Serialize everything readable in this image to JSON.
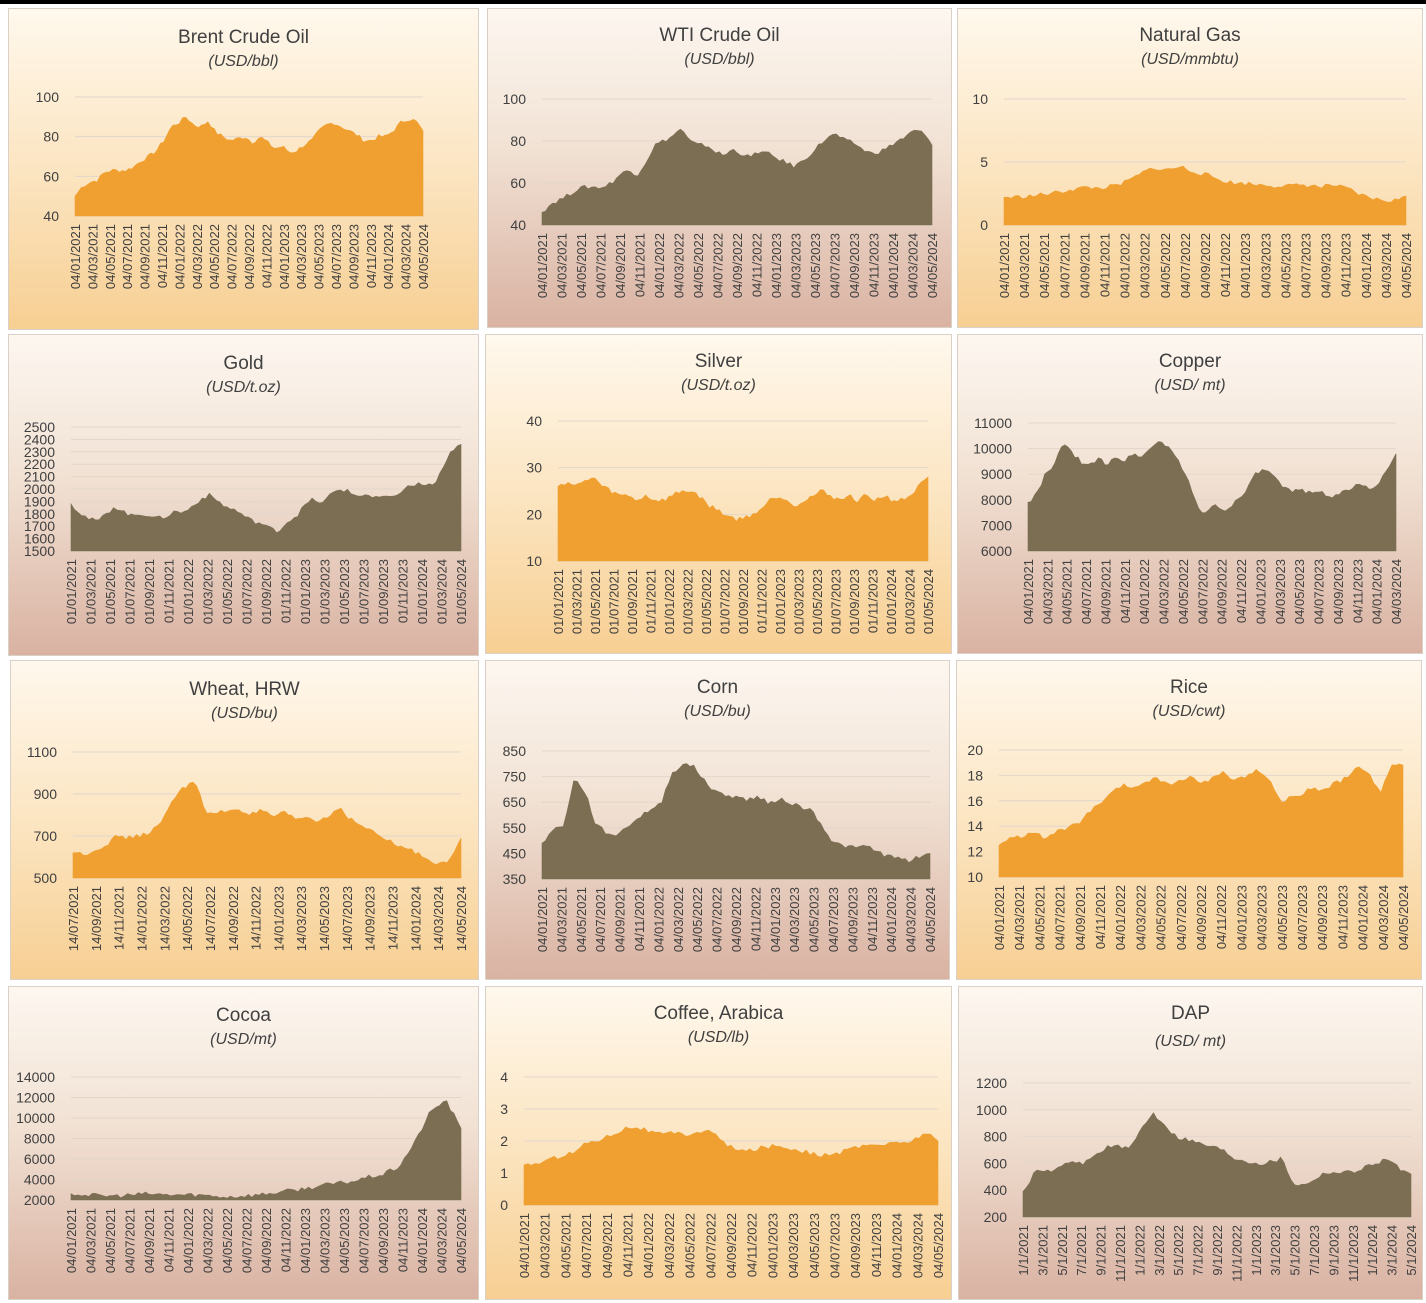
{
  "chart_data": [
    {
      "type": "area",
      "title": "Brent Crude Oil",
      "subtitle": "(USD/bbl)",
      "color": "#f0a030",
      "theme": "orange",
      "yticks": [
        40,
        60,
        80,
        100
      ],
      "ylim": [
        40,
        100
      ],
      "xticks": [
        "04/01/2021",
        "04/03/2021",
        "04/05/2021",
        "04/07/2021",
        "04/09/2021",
        "04/11/2021",
        "04/01/2022",
        "04/03/2022",
        "04/05/2022",
        "04/07/2022",
        "04/09/2022",
        "04/11/2022",
        "04/01/2023",
        "04/03/2023",
        "04/05/2023",
        "04/07/2023",
        "04/09/2023",
        "04/11/2023",
        "04/01/2024",
        "04/03/2024",
        "04/05/2024"
      ],
      "values": [
        50,
        55,
        57,
        58,
        62,
        63,
        63,
        63,
        65,
        68,
        70,
        73,
        78,
        85,
        87,
        90,
        86,
        85,
        88,
        82,
        80,
        78,
        79,
        80,
        77,
        80,
        77,
        74,
        75,
        72,
        73,
        76,
        78,
        83,
        86,
        87,
        85,
        83,
        81,
        78,
        78,
        80,
        80,
        83,
        87,
        89,
        88,
        83
      ]
    },
    {
      "type": "area",
      "title": "WTI Crude Oil",
      "subtitle": "(USD/bbl)",
      "color": "#7b6e53",
      "theme": "brown",
      "yticks": [
        40,
        60,
        80,
        100
      ],
      "ylim": [
        40,
        100
      ],
      "xticks": [
        "04/01/2021",
        "04/03/2021",
        "04/05/2021",
        "04/07/2021",
        "04/09/2021",
        "04/11/2021",
        "04/01/2022",
        "04/03/2022",
        "04/05/2022",
        "04/07/2022",
        "04/09/2022",
        "04/11/2022",
        "04/01/2023",
        "04/03/2023",
        "04/05/2023",
        "04/07/2023",
        "04/09/2023",
        "04/11/2023",
        "04/01/2024",
        "04/03/2024",
        "04/05/2024"
      ],
      "values": [
        46,
        50,
        52,
        54,
        57,
        58,
        58,
        58,
        60,
        64,
        66,
        64,
        70,
        78,
        80,
        82,
        86,
        80,
        78,
        78,
        75,
        73,
        76,
        74,
        72,
        75,
        74,
        72,
        70,
        68,
        70,
        74,
        78,
        82,
        83,
        80,
        79,
        76,
        74,
        75,
        77,
        80,
        82,
        85,
        84,
        78
      ]
    },
    {
      "type": "area",
      "title": "Natural Gas",
      "subtitle": "(USD/mmbtu)",
      "color": "#f0a030",
      "theme": "orange",
      "yticks": [
        0,
        5,
        10
      ],
      "ylim": [
        0,
        10
      ],
      "xticks": [
        "04/01/2021",
        "04/03/2021",
        "04/05/2021",
        "04/07/2021",
        "04/09/2021",
        "04/11/2021",
        "04/01/2022",
        "04/03/2022",
        "04/05/2022",
        "04/07/2022",
        "04/09/2022",
        "04/11/2022",
        "04/01/2023",
        "04/03/2023",
        "04/05/2023",
        "04/07/2023",
        "04/09/2023",
        "04/11/2023",
        "04/01/2024",
        "04/03/2024",
        "04/05/2024"
      ],
      "values": [
        2.2,
        2.2,
        2.25,
        2.3,
        2.4,
        2.5,
        2.6,
        2.8,
        2.9,
        3.0,
        2.9,
        3.0,
        3.1,
        3.4,
        3.8,
        4.2,
        4.6,
        4.3,
        4.5,
        4.6,
        4.3,
        4.1,
        3.9,
        3.6,
        3.4,
        3.3,
        3.3,
        3.2,
        3.2,
        3.1,
        3.1,
        3.1,
        3.2,
        3.1,
        3.0,
        3.2,
        3.0,
        2.8,
        2.4,
        2.2,
        2.0,
        1.9,
        2.0,
        2.3
      ]
    },
    {
      "type": "area",
      "title": "Gold",
      "subtitle": "(USD/t.oz)",
      "color": "#7b6e53",
      "theme": "brown",
      "yticks": [
        1500,
        1600,
        1700,
        1800,
        1900,
        2000,
        2100,
        2200,
        2300,
        2400,
        2500
      ],
      "ylim": [
        1500,
        2500
      ],
      "xticks": [
        "01/01/2021",
        "01/03/2021",
        "01/05/2021",
        "01/07/2021",
        "01/09/2021",
        "01/11/2021",
        "01/01/2022",
        "01/03/2022",
        "01/05/2022",
        "01/07/2022",
        "01/09/2022",
        "01/11/2022",
        "01/01/2023",
        "01/03/2023",
        "01/05/2023",
        "01/07/2023",
        "01/09/2023",
        "01/11/2023",
        "01/01/2024",
        "01/03/2024",
        "01/05/2024"
      ],
      "values": [
        1880,
        1810,
        1760,
        1740,
        1790,
        1860,
        1820,
        1780,
        1800,
        1790,
        1760,
        1780,
        1820,
        1810,
        1860,
        1920,
        1950,
        1900,
        1850,
        1830,
        1780,
        1740,
        1720,
        1680,
        1660,
        1740,
        1780,
        1870,
        1920,
        1880,
        1960,
        2000,
        1980,
        1940,
        1960,
        1920,
        1940,
        1920,
        1980,
        2020,
        2040,
        2030,
        2040,
        2170,
        2320,
        2360
      ]
    },
    {
      "type": "area",
      "title": "Silver",
      "subtitle": "(USD/t.oz)",
      "color": "#f0a030",
      "theme": "orange",
      "yticks": [
        10,
        20,
        30,
        40
      ],
      "ylim": [
        10,
        40
      ],
      "xticks": [
        "01/01/2021",
        "01/03/2021",
        "01/05/2021",
        "01/07/2021",
        "01/09/2021",
        "01/11/2021",
        "01/01/2022",
        "01/03/2022",
        "01/05/2022",
        "01/07/2022",
        "01/09/2022",
        "01/11/2022",
        "01/01/2023",
        "01/03/2023",
        "01/05/2023",
        "01/07/2023",
        "01/09/2023",
        "01/11/2023",
        "01/01/2024",
        "01/03/2024",
        "01/05/2024"
      ],
      "values": [
        26,
        27,
        26,
        27,
        28,
        26,
        25,
        24,
        24,
        23,
        24,
        23,
        23,
        24,
        25,
        25,
        24,
        22,
        21,
        20,
        19,
        19,
        20,
        21,
        23,
        24,
        23,
        22,
        23,
        24,
        25,
        24,
        23,
        24,
        23,
        24,
        23,
        24,
        23,
        23,
        24,
        26,
        28
      ]
    },
    {
      "type": "area",
      "title": "Copper",
      "subtitle": "(USD/ mt)",
      "color": "#7b6e53",
      "theme": "brown",
      "yticks": [
        6000,
        7000,
        8000,
        9000,
        10000,
        11000
      ],
      "ylim": [
        6000,
        11000
      ],
      "xticks": [
        "04/01/2021",
        "04/03/2021",
        "04/05/2021",
        "04/07/2021",
        "04/09/2021",
        "04/11/2021",
        "04/01/2022",
        "04/03/2022",
        "04/05/2022",
        "04/07/2022",
        "04/09/2022",
        "04/11/2022",
        "04/01/2023",
        "04/03/2023",
        "04/05/2023",
        "04/07/2023",
        "04/09/2023",
        "04/11/2023",
        "04/01/2024",
        "04/03/2024"
      ],
      "values": [
        7900,
        8200,
        9000,
        9300,
        10300,
        9800,
        9500,
        9300,
        9600,
        9400,
        9700,
        9500,
        9800,
        9700,
        10000,
        10300,
        10100,
        9600,
        9000,
        8000,
        7400,
        7800,
        7700,
        7600,
        8100,
        8400,
        9000,
        9200,
        8900,
        8500,
        8300,
        8400,
        8300,
        8400,
        8200,
        8100,
        8300,
        8500,
        8600,
        8400,
        8700,
        9100,
        9800
      ]
    },
    {
      "type": "area",
      "title": "Wheat, HRW",
      "subtitle": "(USD/bu)",
      "color": "#f0a030",
      "theme": "orange",
      "yticks": [
        500,
        700,
        900,
        1100
      ],
      "ylim": [
        500,
        1100
      ],
      "xticks": [
        "14/07/2021",
        "14/09/2021",
        "14/11/2021",
        "14/01/2022",
        "14/03/2022",
        "14/05/2022",
        "14/07/2022",
        "14/09/2022",
        "14/11/2022",
        "14/01/2023",
        "14/03/2023",
        "14/05/2023",
        "14/07/2023",
        "14/09/2023",
        "14/11/2023",
        "14/01/2024",
        "14/03/2024",
        "14/05/2024"
      ],
      "values": [
        620,
        615,
        630,
        660,
        700,
        690,
        700,
        720,
        760,
        880,
        930,
        970,
        800,
        810,
        820,
        830,
        800,
        820,
        790,
        810,
        780,
        790,
        770,
        790,
        840,
        780,
        750,
        720,
        690,
        660,
        640,
        620,
        590,
        570,
        580,
        690
      ]
    },
    {
      "type": "area",
      "title": "Corn",
      "subtitle": "(USD/bu)",
      "color": "#7b6e53",
      "theme": "brown",
      "yticks": [
        350,
        450,
        550,
        650,
        750,
        850
      ],
      "ylim": [
        350,
        850
      ],
      "xticks": [
        "04/01/2021",
        "04/03/2021",
        "04/05/2021",
        "04/07/2021",
        "04/09/2021",
        "04/11/2021",
        "04/01/2022",
        "04/03/2022",
        "04/05/2022",
        "04/07/2022",
        "04/09/2022",
        "04/11/2022",
        "04/01/2023",
        "04/03/2023",
        "04/05/2023",
        "04/07/2023",
        "04/09/2023",
        "04/11/2023",
        "04/01/2024",
        "04/03/2024",
        "04/05/2024"
      ],
      "values": [
        490,
        540,
        560,
        740,
        690,
        560,
        530,
        520,
        560,
        590,
        620,
        640,
        760,
        800,
        790,
        740,
        690,
        680,
        670,
        660,
        670,
        650,
        660,
        650,
        630,
        620,
        560,
        490,
        480,
        470,
        480,
        460,
        440,
        430,
        420,
        440,
        450
      ]
    },
    {
      "type": "area",
      "title": "Rice",
      "subtitle": "(USD/cwt)",
      "color": "#f0a030",
      "theme": "orange",
      "yticks": [
        10,
        12,
        14,
        16,
        18,
        20
      ],
      "ylim": [
        10,
        20
      ],
      "xticks": [
        "04/01/2021",
        "04/03/2021",
        "04/05/2021",
        "04/07/2021",
        "04/09/2021",
        "04/11/2021",
        "04/01/2022",
        "04/03/2022",
        "04/05/2022",
        "04/07/2022",
        "04/09/2022",
        "04/11/2022",
        "04/01/2023",
        "04/03/2023",
        "04/05/2023",
        "04/07/2023",
        "04/09/2023",
        "04/11/2023",
        "04/01/2024",
        "04/03/2024",
        "04/05/2024"
      ],
      "values": [
        12.5,
        13,
        13.2,
        13.6,
        13,
        13.5,
        13.8,
        14.2,
        15,
        15.8,
        16.5,
        17.2,
        17,
        17.5,
        17.8,
        17.2,
        17.6,
        17.8,
        17.4,
        17.8,
        18.2,
        17.6,
        18,
        18.4,
        17.8,
        16,
        16.2,
        16.6,
        17,
        16.8,
        17.4,
        17.8,
        18.6,
        18.2,
        16.5,
        19,
        18.8
      ]
    },
    {
      "type": "area",
      "title": "Cocoa",
      "subtitle": "(USD/mt)",
      "color": "#7b6e53",
      "theme": "brown",
      "yticks": [
        2000,
        4000,
        6000,
        8000,
        10000,
        12000,
        14000
      ],
      "ylim": [
        2000,
        14000
      ],
      "xticks": [
        "04/01/2021",
        "04/03/2021",
        "04/05/2021",
        "04/07/2021",
        "04/09/2021",
        "04/11/2021",
        "04/01/2022",
        "04/03/2022",
        "04/05/2022",
        "04/07/2022",
        "04/09/2022",
        "04/11/2022",
        "04/01/2023",
        "04/03/2023",
        "04/05/2023",
        "04/07/2023",
        "04/09/2023",
        "04/11/2023",
        "04/01/2024",
        "04/03/2024",
        "04/05/2024"
      ],
      "values": [
        2600,
        2500,
        2400,
        2400,
        2500,
        2600,
        2500,
        2500,
        2500,
        2400,
        2300,
        2400,
        2500,
        2700,
        2900,
        3100,
        3400,
        3600,
        3800,
        4200,
        4500,
        5200,
        7500,
        10500,
        11800,
        9000
      ]
    },
    {
      "type": "area",
      "title": "Coffee, Arabica",
      "subtitle": "(USD/lb)",
      "color": "#f0a030",
      "theme": "orange",
      "yticks": [
        0,
        1,
        2,
        3,
        4
      ],
      "ylim": [
        0,
        4
      ],
      "xticks": [
        "04/01/2021",
        "04/03/2021",
        "04/05/2021",
        "04/07/2021",
        "04/09/2021",
        "04/11/2021",
        "04/01/2022",
        "04/03/2022",
        "04/05/2022",
        "04/07/2022",
        "04/09/2022",
        "04/11/2022",
        "04/01/2023",
        "04/03/2023",
        "04/05/2023",
        "04/07/2023",
        "04/09/2023",
        "04/11/2023",
        "04/01/2024",
        "04/03/2024",
        "04/05/2024"
      ],
      "values": [
        1.25,
        1.3,
        1.4,
        1.55,
        1.65,
        1.95,
        2.05,
        2.2,
        2.4,
        2.45,
        2.3,
        2.2,
        2.25,
        2.2,
        2.3,
        2.3,
        1.9,
        1.7,
        1.7,
        1.8,
        1.85,
        1.8,
        1.7,
        1.6,
        1.55,
        1.6,
        1.75,
        1.85,
        1.9,
        1.9,
        1.95,
        2.0,
        2.3,
        2.0
      ]
    },
    {
      "type": "area",
      "title": "DAP",
      "subtitle": "(USD/ mt)",
      "color": "#7b6e53",
      "theme": "brown",
      "yticks": [
        200,
        400,
        600,
        800,
        1000,
        1200
      ],
      "ylim": [
        200,
        1200
      ],
      "xticks": [
        "1/1/2021",
        "3/1/2021",
        "5/1/2021",
        "7/1/2021",
        "9/1/2021",
        "11/1/2021",
        "1/1/2022",
        "3/1/2022",
        "5/1/2022",
        "7/1/2022",
        "9/1/2022",
        "11/1/2022",
        "1/1/2023",
        "3/1/2023",
        "5/1/2023",
        "7/1/2023",
        "9/1/2023",
        "11/1/2023",
        "1/1/2024",
        "3/1/2024",
        "5/1/2024"
      ],
      "values": [
        390,
        530,
        540,
        560,
        600,
        600,
        650,
        720,
        730,
        700,
        850,
        980,
        900,
        800,
        780,
        750,
        730,
        700,
        640,
        620,
        600,
        610,
        640,
        450,
        440,
        500,
        540,
        530,
        540,
        570,
        600,
        640,
        560,
        520
      ]
    }
  ]
}
